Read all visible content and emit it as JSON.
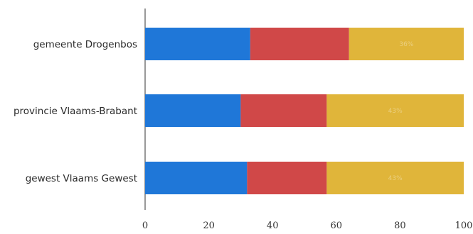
{
  "chart_data": {
    "type": "bar",
    "orientation": "horizontal",
    "stacked": true,
    "categories": [
      "gemeente Drogenbos",
      "provincie Vlaams-Brabant",
      "gewest Vlaams Gewest"
    ],
    "series": [
      {
        "color": "#1f77d8",
        "values": [
          33,
          30,
          32
        ]
      },
      {
        "color": "#d04848",
        "values": [
          31,
          27,
          25
        ]
      },
      {
        "color": "#e0b53a",
        "values": [
          36,
          43,
          43
        ]
      }
    ],
    "x_ticks": [
      0,
      20,
      40,
      60,
      80,
      100
    ],
    "xlim": [
      0,
      100
    ],
    "segment_labels": [
      [
        "",
        "",
        "36%"
      ],
      [
        "",
        "",
        "43%"
      ],
      [
        "",
        "",
        "43%"
      ]
    ],
    "grid": false,
    "legend": "none"
  }
}
